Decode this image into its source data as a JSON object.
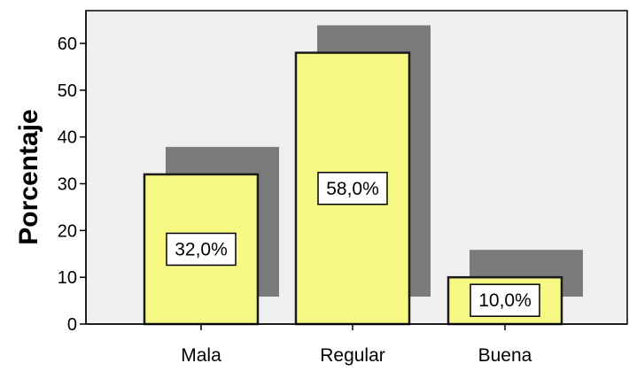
{
  "chart_data": {
    "type": "bar",
    "title": "",
    "ylabel": "Porcentaje",
    "xlabel": "",
    "categories": [
      "Mala",
      "Regular",
      "Buena"
    ],
    "values": [
      32.0,
      58.0,
      10.0
    ],
    "data_labels": [
      "32,0%",
      "58,0%",
      "10,0%"
    ],
    "yticks": [
      "0",
      "10",
      "20",
      "30",
      "40",
      "50",
      "60"
    ],
    "ylim": [
      0,
      68
    ],
    "grid": false,
    "legend": "none",
    "style": "3d-shadow"
  },
  "colors": {
    "bar_fill": "#f7f783",
    "bar_stroke": "#1a1a1a",
    "shadow": "#7b7b7b",
    "plot_bg": "#efefef"
  }
}
